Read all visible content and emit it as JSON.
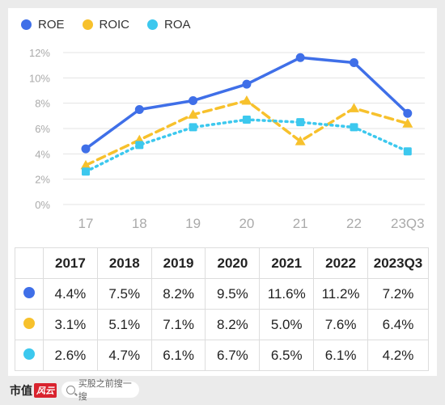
{
  "chart_data": {
    "type": "line",
    "categories": [
      "17",
      "18",
      "19",
      "20",
      "21",
      "22",
      "23Q3"
    ],
    "ylim": [
      0,
      12
    ],
    "yticks": [
      0,
      2,
      4,
      6,
      8,
      10,
      12
    ],
    "ytick_labels": [
      "0%",
      "2%",
      "4%",
      "6%",
      "8%",
      "10%",
      "12%"
    ],
    "grid": true,
    "legend_position": "top-left",
    "series": [
      {
        "name": "ROE",
        "color": "#3f6fe8",
        "style": "solid",
        "marker": "circle",
        "values": [
          4.4,
          7.5,
          8.2,
          9.5,
          11.6,
          11.2,
          7.2
        ]
      },
      {
        "name": "ROIC",
        "color": "#f7c12c",
        "style": "dashed",
        "marker": "triangle",
        "values": [
          3.1,
          5.1,
          7.1,
          8.2,
          5.0,
          7.6,
          6.4
        ]
      },
      {
        "name": "ROA",
        "color": "#3cc8ee",
        "style": "dotted",
        "marker": "square",
        "values": [
          2.6,
          4.7,
          6.1,
          6.7,
          6.5,
          6.1,
          4.2
        ]
      }
    ]
  },
  "table": {
    "headers": [
      "2017",
      "2018",
      "2019",
      "2020",
      "2021",
      "2022",
      "2023Q3"
    ],
    "rows": [
      {
        "color": "#3f6fe8",
        "cells": [
          "4.4%",
          "7.5%",
          "8.2%",
          "9.5%",
          "11.6%",
          "11.2%",
          "7.2%"
        ]
      },
      {
        "color": "#f7c12c",
        "cells": [
          "3.1%",
          "5.1%",
          "7.1%",
          "8.2%",
          "5.0%",
          "7.6%",
          "6.4%"
        ]
      },
      {
        "color": "#3cc8ee",
        "cells": [
          "2.6%",
          "4.7%",
          "6.1%",
          "6.7%",
          "6.5%",
          "6.1%",
          "4.2%"
        ]
      }
    ]
  },
  "footer": {
    "brand": "市值",
    "brand_mark": "风云",
    "search_placeholder": "买股之前搜一搜"
  }
}
